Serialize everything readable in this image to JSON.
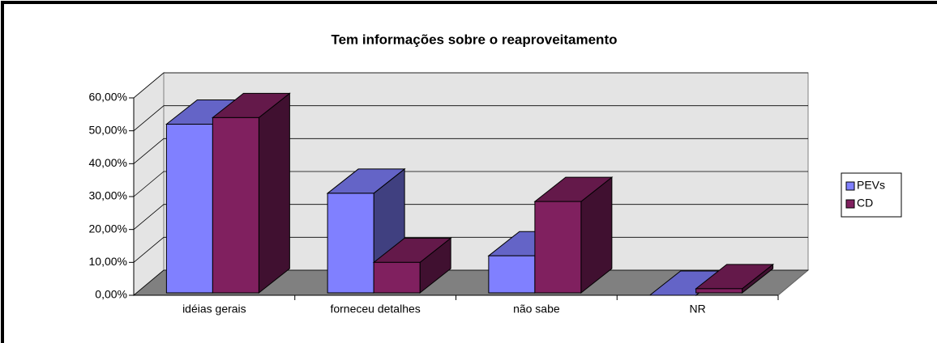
{
  "chart_data": {
    "type": "bar3d",
    "title": "Tem informações sobre o reaproveitamento",
    "categories": [
      "idéias gerais",
      "forneceu detalhes",
      "não sabe",
      "NR"
    ],
    "series": [
      {
        "name": "PEVs",
        "color": "#8080ff",
        "values": [
          52,
          31,
          12,
          0
        ]
      },
      {
        "name": "CD",
        "color": "#80205f",
        "values": [
          54,
          10,
          28.5,
          2
        ]
      }
    ],
    "ylim": [
      0,
      60
    ],
    "yticks": [
      {
        "value": 0,
        "label": "0,00%"
      },
      {
        "value": 10,
        "label": "10,00%"
      },
      {
        "value": 20,
        "label": "20,00%"
      },
      {
        "value": 30,
        "label": "30,00%"
      },
      {
        "value": 40,
        "label": "40,00%"
      },
      {
        "value": 50,
        "label": "50,00%"
      },
      {
        "value": 60,
        "label": "60,00%"
      }
    ],
    "grid": true,
    "legend": "right"
  }
}
